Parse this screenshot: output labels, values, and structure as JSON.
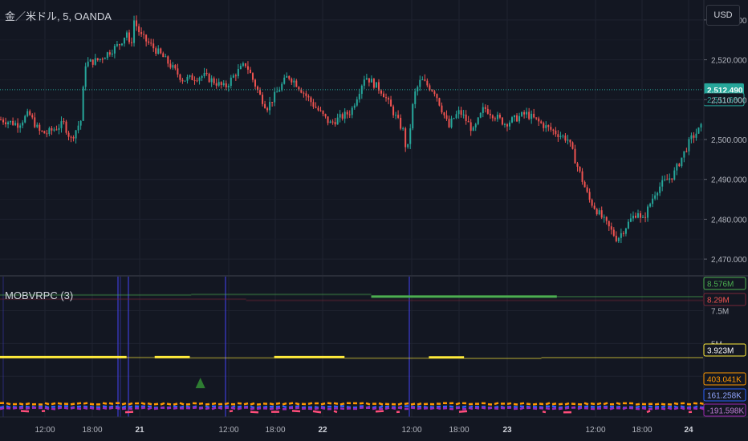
{
  "header": {
    "symbol_title": "金／米ドル, 5, OANDA",
    "currency_button": "USD",
    "indicator_title": "MOBVRPC (3)"
  },
  "colors": {
    "background": "#131722",
    "grid": "#1f2330",
    "up_candle": "#26a69a",
    "down_candle": "#ef5350",
    "green_line": "#4caf50",
    "dark_red_line": "#7a2738",
    "yellow_line": "#ffeb3b",
    "orange_line": "#ff9800",
    "blue_line": "#2962ff",
    "purple_line": "#9c27b0",
    "pink_line": "#ff4d7a",
    "session_marker": "#3d3bcc",
    "current_price_tag": "#26a69a",
    "signal_triangle": "#2e7d32"
  },
  "chart_data": [
    {
      "type": "candlestick",
      "title": "金／米ドル, 5, OANDA",
      "y_ticks": [
        "2,530.000",
        "2,520.000",
        "2,510.000",
        "2,500.000",
        "2,490.000",
        "2,480.000",
        "2,470.000"
      ],
      "y_tick_values": [
        2530,
        2520,
        2510,
        2500,
        2490,
        2480,
        2470
      ],
      "ylim": [
        2466,
        2535
      ],
      "x_ticks": [
        "12:00",
        "18:00",
        "21",
        "12:00",
        "18:00",
        "22",
        "12:00",
        "18:00",
        "23",
        "12:00",
        "18:00",
        "24"
      ],
      "current_price_label": "2,512.490",
      "secondary_price_label": "2,511.680",
      "current_price": 2512.49,
      "secondary_price": 2511.68,
      "path_x": [
        0.0,
        0.025,
        0.04,
        0.055,
        0.065,
        0.09,
        0.1,
        0.115,
        0.12,
        0.14,
        0.17,
        0.18,
        0.185,
        0.19,
        0.2,
        0.23,
        0.26,
        0.29,
        0.32,
        0.335,
        0.35,
        0.37,
        0.38,
        0.395,
        0.41,
        0.42,
        0.445,
        0.47,
        0.5,
        0.52,
        0.545,
        0.56,
        0.575,
        0.58,
        0.59,
        0.6,
        0.62,
        0.64,
        0.645,
        0.655,
        0.66,
        0.675,
        0.69,
        0.72,
        0.75,
        0.78,
        0.81,
        0.84,
        0.88,
        0.9,
        0.91,
        0.915,
        0.925,
        0.935,
        0.945,
        0.96,
        0.985,
        1.0
      ],
      "path_y": [
        2505.0,
        2503.8,
        2506.5,
        2502.0,
        2501.5,
        2504.0,
        2500.0,
        2505.0,
        2519.0,
        2520.0,
        2524.0,
        2527.0,
        2522.0,
        2530.0,
        2526.0,
        2521.0,
        2515.0,
        2516.0,
        2513.0,
        2516.5,
        2519.0,
        2511.0,
        2508.0,
        2512.0,
        2516.0,
        2514.5,
        2509.0,
        2504.0,
        2507.0,
        2516.0,
        2512.0,
        2507.0,
        2502.0,
        2496.0,
        2511.0,
        2515.0,
        2512.0,
        2503.0,
        2505.0,
        2507.0,
        2506.0,
        2502.0,
        2508.0,
        2504.0,
        2506.5,
        2503.0,
        2500.0,
        2485.0,
        2475.0,
        2480.0,
        2482.0,
        2479.0,
        2483.0,
        2487.0,
        2489.0,
        2491.0,
        2500.0,
        2503.0
      ]
    },
    {
      "type": "line",
      "title": "MOBVRPC (3)",
      "y_ticks": [
        "7.5M",
        "5M",
        "2.5M"
      ],
      "y_tick_values": [
        7.5,
        5,
        2.5
      ],
      "unit": "M",
      "ylim": [
        -0.6,
        10.1
      ],
      "value_labels": [
        "8.576M",
        "8.29M",
        "3.923M",
        "403.041K",
        "161.258K",
        "-191.598K"
      ],
      "series": [
        {
          "color": "#4caf50",
          "value": 8.576,
          "segments": [
            [
              0.0,
              0.272,
              8.7
            ],
            [
              0.272,
              0.528,
              8.74
            ],
            [
              0.528,
              0.792,
              8.576
            ],
            [
              0.792,
              1.0,
              8.57
            ]
          ],
          "bright": [
            0.528,
            0.792
          ]
        },
        {
          "color": "#7a2738",
          "value": 8.29,
          "segments": [
            [
              0.0,
              0.35,
              8.38
            ],
            [
              0.35,
              1.0,
              8.29
            ]
          ],
          "bright": []
        },
        {
          "color": "#ffeb3b",
          "value": 3.923,
          "segments": [
            [
              0.0,
              0.18,
              3.96
            ],
            [
              0.18,
              0.22,
              3.93
            ],
            [
              0.22,
              0.27,
              3.96
            ],
            [
              0.27,
              0.39,
              3.9
            ],
            [
              0.39,
              0.49,
              3.96
            ],
            [
              0.49,
              0.61,
              3.88
            ],
            [
              0.61,
              0.66,
              3.94
            ],
            [
              0.66,
              0.77,
              3.86
            ],
            [
              0.77,
              1.0,
              3.923
            ]
          ],
          "bright": [
            0.0,
            0.18,
            0.22,
            0.27,
            0.39,
            0.49,
            0.61,
            0.66
          ]
        },
        {
          "color": "#ff9800",
          "value": 0.403,
          "segments": [
            [
              0.0,
              1.0,
              0.403
            ]
          ],
          "dashed": true
        },
        {
          "color": "#2962ff",
          "value": 0.161,
          "segments": [
            [
              0.0,
              1.0,
              0.161
            ]
          ],
          "dashed": true
        },
        {
          "color": "#9c27b0",
          "value": 0.05,
          "segments": [
            [
              0.0,
              1.0,
              0.05
            ]
          ],
          "dashed": true
        },
        {
          "color": "#ff4d7a",
          "value": -0.192,
          "segments": [
            [
              0.0,
              1.0,
              -0.192
            ]
          ],
          "dashed": true,
          "sparse": true
        }
      ],
      "signal_marker": {
        "x": 0.285,
        "value": 1.9
      }
    }
  ]
}
